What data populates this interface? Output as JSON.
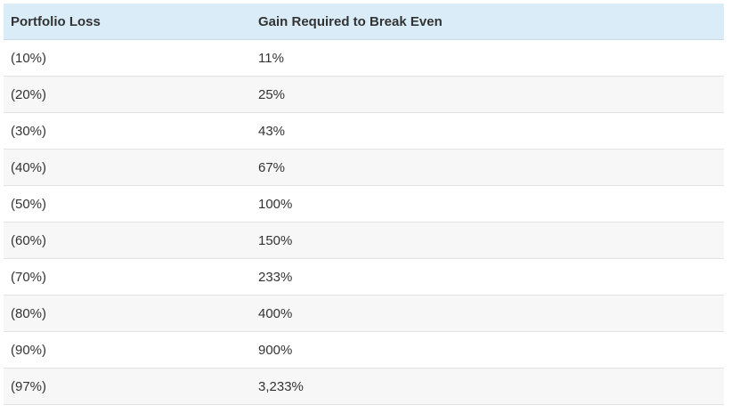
{
  "chart_data": {
    "type": "table",
    "columns": [
      "Portfolio Loss",
      "Gain Required to Break Even"
    ],
    "rows": [
      [
        "(10%)",
        "11%"
      ],
      [
        "(20%)",
        "25%"
      ],
      [
        "(30%)",
        "43%"
      ],
      [
        "(40%)",
        "67%"
      ],
      [
        "(50%)",
        "100%"
      ],
      [
        "(60%)",
        "150%"
      ],
      [
        "(70%)",
        "233%"
      ],
      [
        "(80%)",
        "400%"
      ],
      [
        "(90%)",
        "900%"
      ],
      [
        "(97%)",
        "3,233%"
      ]
    ]
  },
  "colors": {
    "header_bg": "#d9ecf7",
    "stripe_bg": "#f7f7f7",
    "text": "#333333"
  }
}
